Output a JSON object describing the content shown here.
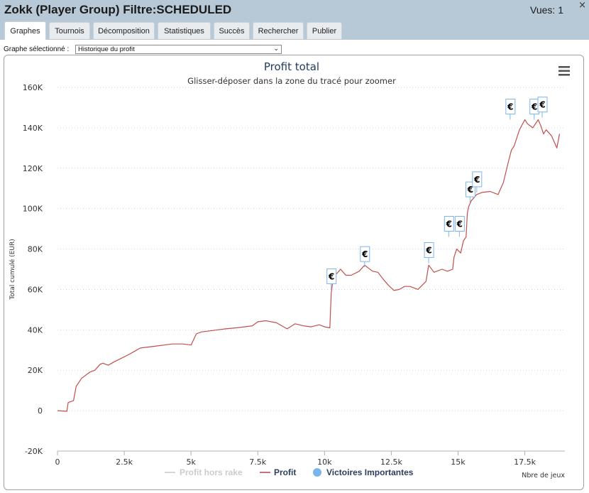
{
  "window": {
    "title": "Zokk (Player Group) Filtre:SCHEDULED",
    "views": "Vues: 1",
    "close_glyph": "×"
  },
  "tabs": [
    {
      "label": "Graphes",
      "active": true
    },
    {
      "label": "Tournois",
      "active": false
    },
    {
      "label": "Décomposition",
      "active": false
    },
    {
      "label": "Statistiques",
      "active": false
    },
    {
      "label": "Succès",
      "active": false
    },
    {
      "label": "Rechercher",
      "active": false
    },
    {
      "label": "Publier",
      "active": false
    }
  ],
  "graph_selector": {
    "label": "Graphe sélectionné :",
    "value": "Historique du profit"
  },
  "menu_icon": "hamburger-menu-icon",
  "colors": {
    "profit_line": "#c0504d",
    "rake_line": "#cccccc",
    "victories": "#7cb5ec",
    "title": "#1f3a5f"
  },
  "chart_data": {
    "type": "line",
    "title": "Profit total",
    "subtitle": "Glisser-déposer dans la zone du tracé pour zoomer",
    "ylabel": "Total cumulé (EUR)",
    "xlabel": "Nbre de jeux",
    "ylim": [
      -20000,
      160000
    ],
    "xlim": [
      0,
      19000
    ],
    "yticks": [
      -20000,
      0,
      20000,
      40000,
      60000,
      80000,
      100000,
      120000,
      140000,
      160000
    ],
    "ytick_labels": [
      "-20K",
      "0",
      "20K",
      "40K",
      "60K",
      "80K",
      "100K",
      "120K",
      "140K",
      "160K"
    ],
    "xticks": [
      0,
      2500,
      5000,
      7500,
      10000,
      12500,
      15000,
      17500
    ],
    "xtick_labels": [
      "0",
      "2.5k",
      "5k",
      "7.5k",
      "10k",
      "12.5k",
      "15k",
      "17.5k"
    ],
    "grid": true,
    "legend_position": "bottom",
    "legend": [
      {
        "name": "Profit hors rake",
        "color": "#cccccc",
        "kind": "line"
      },
      {
        "name": "Profit",
        "color": "#c0504d",
        "kind": "line"
      },
      {
        "name": "Victoires Importantes",
        "color": "#7cb5ec",
        "kind": "dot"
      }
    ],
    "series": [
      {
        "name": "Profit",
        "x": [
          0,
          350,
          400,
          600,
          700,
          900,
          1000,
          1200,
          1400,
          1600,
          1700,
          1900,
          2100,
          2400,
          2700,
          2900,
          3100,
          3400,
          3700,
          4000,
          4300,
          4700,
          5000,
          5200,
          5400,
          5700,
          6000,
          6300,
          6700,
          7000,
          7300,
          7500,
          7800,
          8200,
          8600,
          8900,
          9200,
          9500,
          9800,
          10000,
          10200,
          10250,
          10300,
          10400,
          10600,
          10800,
          11000,
          11300,
          11500,
          11800,
          12000,
          12200,
          12400,
          12600,
          12800,
          13000,
          13200,
          13500,
          13800,
          13900,
          14100,
          14400,
          14600,
          14800,
          14850,
          14950,
          15100,
          15200,
          15300,
          15350,
          15400,
          15500,
          15700,
          15900,
          16200,
          16500,
          16700,
          16900,
          17000,
          17100,
          17300,
          17500,
          17600,
          17800,
          18000,
          18100,
          18200,
          18300,
          18500,
          18700,
          18800
        ],
        "y": [
          0,
          -300,
          4000,
          5000,
          12000,
          16000,
          17000,
          19000,
          20000,
          23000,
          23500,
          22500,
          24000,
          26000,
          28000,
          29500,
          31000,
          31500,
          32000,
          32500,
          33000,
          33000,
          32500,
          38000,
          39000,
          39500,
          40000,
          40500,
          41000,
          41500,
          42000,
          44000,
          44500,
          43500,
          40500,
          43000,
          42000,
          41500,
          42500,
          41500,
          41000,
          58000,
          63000,
          67000,
          70000,
          67000,
          67000,
          69000,
          72000,
          69000,
          68500,
          65000,
          62000,
          59500,
          60000,
          61500,
          61500,
          60000,
          64000,
          72000,
          68500,
          70000,
          69000,
          70000,
          76000,
          80000,
          78000,
          84000,
          86000,
          98000,
          101000,
          104000,
          107000,
          108000,
          108500,
          107000,
          113000,
          124000,
          129000,
          131000,
          139000,
          144000,
          142000,
          140000,
          144000,
          141000,
          137000,
          139000,
          136000,
          130000,
          137000
        ]
      },
      {
        "name": "Victoires Importantes",
        "x": [
          10250,
          11500,
          13900,
          14650,
          15050,
          15450,
          15700,
          16950,
          17850,
          18150
        ],
        "y": [
          60000,
          71000,
          73000,
          86000,
          86000,
          103000,
          108000,
          144000,
          144000,
          145000
        ],
        "labels": [
          "€",
          "€",
          "€",
          "€",
          "€",
          "€",
          "€",
          "€",
          "€",
          "€"
        ]
      }
    ]
  }
}
